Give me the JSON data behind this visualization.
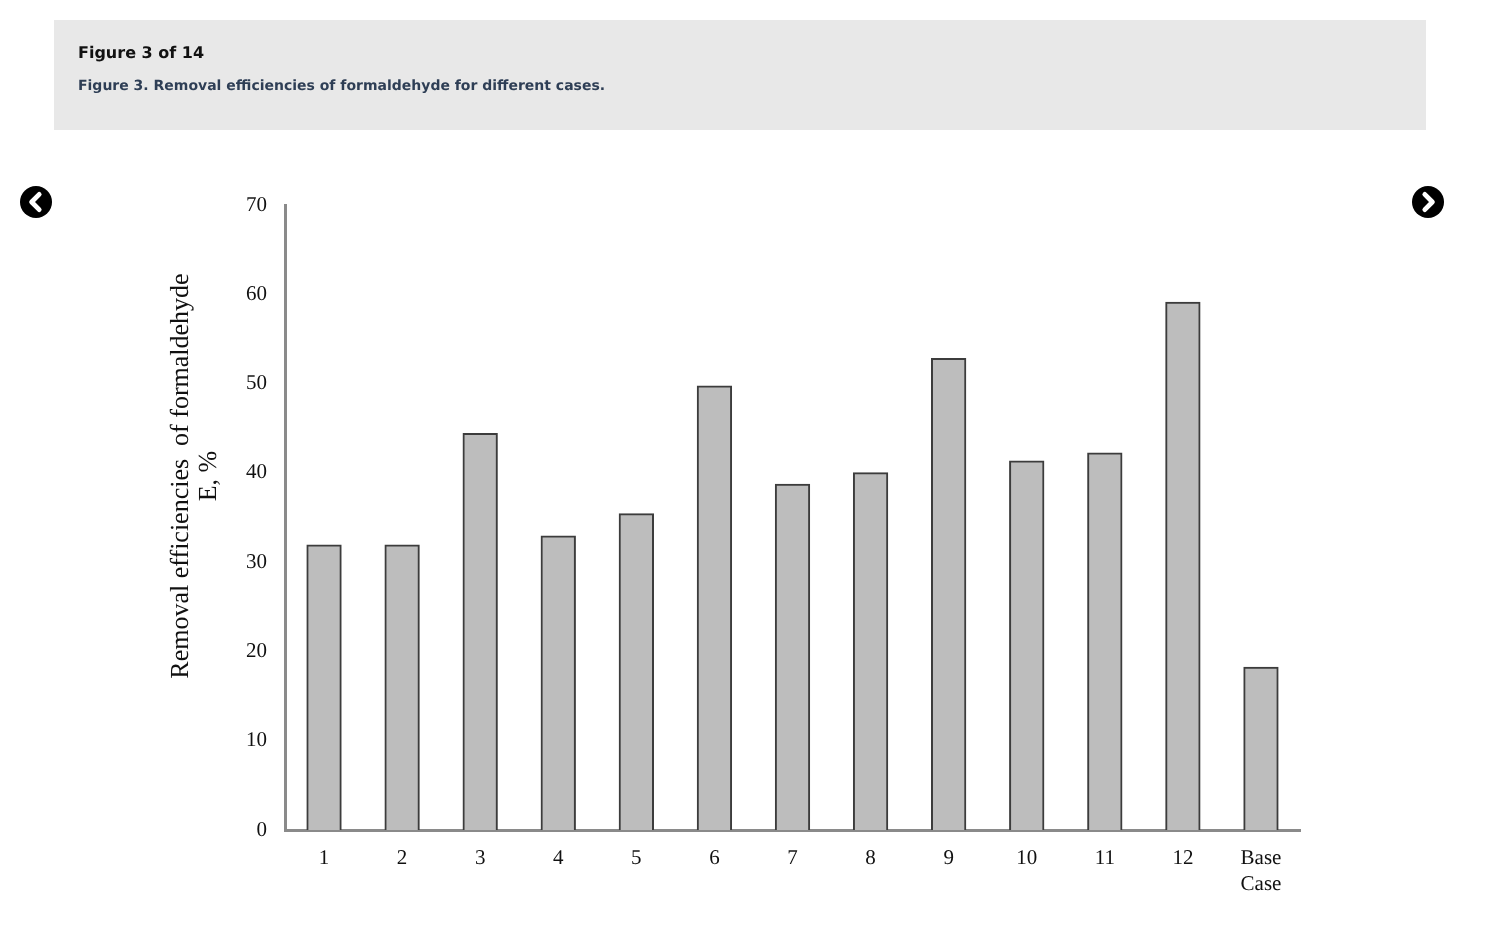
{
  "chart_data": {
    "type": "bar",
    "title": "Figure 3. Removal efficiencies of formaldehyde for different cases.",
    "annotations": [
      "Figure 3 of 14"
    ],
    "ylabel": "Removal efficiencies  of formaldehyde\nE, %",
    "categories": [
      "1",
      "2",
      "3",
      "4",
      "5",
      "6",
      "7",
      "8",
      "9",
      "10",
      "11",
      "12",
      "Base Case"
    ],
    "values": [
      31.9,
      31.9,
      44.4,
      32.9,
      35.4,
      49.7,
      38.7,
      40.0,
      52.8,
      41.3,
      42.2,
      59.1,
      18.2
    ],
    "color": "#bdbdbd",
    "ylim": [
      0,
      70
    ],
    "yticks": [
      0,
      10,
      20,
      30,
      40,
      50,
      60,
      70
    ],
    "grid": false,
    "legend": false
  }
}
